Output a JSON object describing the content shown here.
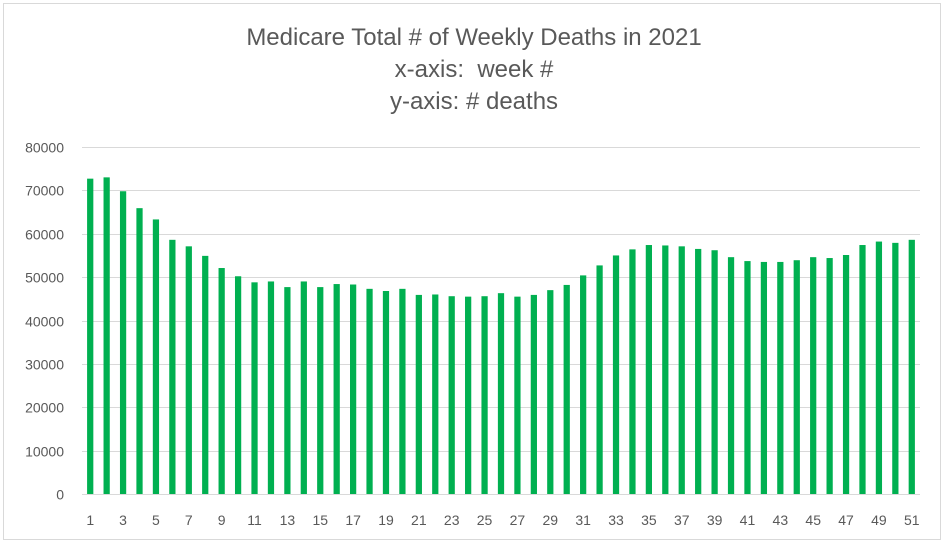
{
  "chart_data": {
    "type": "bar",
    "title": "Medicare Total # of Weekly Deaths in 2021",
    "subtitle_lines": [
      "x-axis:  week #",
      "y-axis: # deaths"
    ],
    "xlabel": "",
    "ylabel": "",
    "ylim": [
      0,
      80000
    ],
    "y_ticks": [
      0,
      10000,
      20000,
      30000,
      40000,
      50000,
      60000,
      70000,
      80000
    ],
    "grid": true,
    "legend": "none",
    "bar_color": "#00b050",
    "categories": [
      1,
      2,
      3,
      4,
      5,
      6,
      7,
      8,
      9,
      10,
      11,
      12,
      13,
      14,
      15,
      16,
      17,
      18,
      19,
      20,
      21,
      22,
      23,
      24,
      25,
      26,
      27,
      28,
      29,
      30,
      31,
      32,
      33,
      34,
      35,
      36,
      37,
      38,
      39,
      40,
      41,
      42,
      43,
      44,
      45,
      46,
      47,
      48,
      49,
      50,
      51
    ],
    "x_tick_labels_shown": [
      1,
      3,
      5,
      7,
      9,
      11,
      13,
      15,
      17,
      19,
      21,
      23,
      25,
      27,
      29,
      31,
      33,
      35,
      37,
      39,
      41,
      43,
      45,
      47,
      49,
      51
    ],
    "values": [
      72700,
      73000,
      69800,
      65900,
      63300,
      58600,
      57100,
      54900,
      52100,
      50200,
      48800,
      49000,
      47700,
      49000,
      47700,
      48400,
      48300,
      47300,
      46800,
      47300,
      45900,
      46000,
      45600,
      45500,
      45600,
      46300,
      45500,
      45900,
      47000,
      48200,
      50400,
      52700,
      55000,
      56400,
      57400,
      57300,
      57100,
      56500,
      56200,
      54600,
      53700,
      53500,
      53500,
      53900,
      54600,
      54400,
      55100,
      57400,
      58200,
      57900,
      58600
    ]
  }
}
